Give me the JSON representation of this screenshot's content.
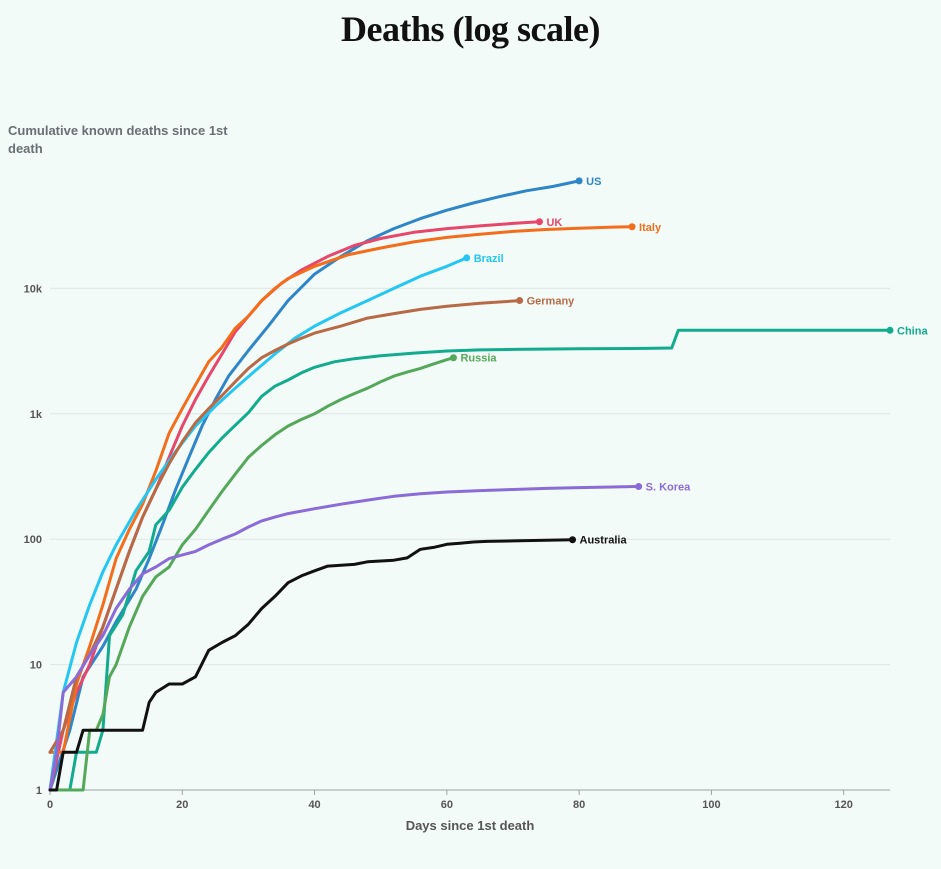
{
  "chart_data": {
    "type": "line",
    "title": "Deaths (log scale)",
    "ylabel": "Cumulative known deaths since 1st death",
    "xlabel": "Days since 1st death",
    "yscale": "log",
    "xlim": [
      0,
      127
    ],
    "ylim": [
      1,
      100000
    ],
    "x_ticks": [
      0,
      20,
      40,
      60,
      80,
      100,
      120
    ],
    "y_ticks": [
      {
        "value": 1,
        "label": "1"
      },
      {
        "value": 10,
        "label": "10"
      },
      {
        "value": 100,
        "label": "100"
      },
      {
        "value": 1000,
        "label": "1k"
      },
      {
        "value": 10000,
        "label": "10k"
      }
    ],
    "grid": "horizontal",
    "series": [
      {
        "name": "US",
        "color": "#2e86c8",
        "points": [
          [
            0,
            1
          ],
          [
            3,
            3
          ],
          [
            5,
            8
          ],
          [
            8,
            14
          ],
          [
            10,
            22
          ],
          [
            13,
            40
          ],
          [
            15,
            70
          ],
          [
            17,
            130
          ],
          [
            19,
            250
          ],
          [
            21,
            450
          ],
          [
            23,
            800
          ],
          [
            25,
            1300
          ],
          [
            27,
            2000
          ],
          [
            30,
            3200
          ],
          [
            33,
            5000
          ],
          [
            36,
            8000
          ],
          [
            40,
            13000
          ],
          [
            44,
            18000
          ],
          [
            48,
            24000
          ],
          [
            52,
            30000
          ],
          [
            56,
            36000
          ],
          [
            60,
            42000
          ],
          [
            64,
            48000
          ],
          [
            68,
            54000
          ],
          [
            72,
            60000
          ],
          [
            76,
            65000
          ],
          [
            80,
            72000
          ]
        ]
      },
      {
        "name": "UK",
        "color": "#e6476a",
        "points": [
          [
            0,
            1
          ],
          [
            2,
            3
          ],
          [
            4,
            6
          ],
          [
            6,
            10
          ],
          [
            8,
            20
          ],
          [
            10,
            40
          ],
          [
            12,
            80
          ],
          [
            14,
            150
          ],
          [
            16,
            250
          ],
          [
            18,
            450
          ],
          [
            20,
            800
          ],
          [
            22,
            1300
          ],
          [
            24,
            2000
          ],
          [
            26,
            3000
          ],
          [
            28,
            4500
          ],
          [
            30,
            6000
          ],
          [
            32,
            8000
          ],
          [
            35,
            11000
          ],
          [
            38,
            14000
          ],
          [
            42,
            18000
          ],
          [
            46,
            22000
          ],
          [
            50,
            25000
          ],
          [
            55,
            28000
          ],
          [
            60,
            30000
          ],
          [
            65,
            31500
          ],
          [
            70,
            33000
          ],
          [
            74,
            34000
          ]
        ]
      },
      {
        "name": "Italy",
        "color": "#f36d1b",
        "points": [
          [
            0,
            2
          ],
          [
            2,
            2
          ],
          [
            4,
            7
          ],
          [
            6,
            14
          ],
          [
            8,
            30
          ],
          [
            10,
            70
          ],
          [
            12,
            120
          ],
          [
            14,
            190
          ],
          [
            16,
            350
          ],
          [
            18,
            700
          ],
          [
            20,
            1100
          ],
          [
            22,
            1700
          ],
          [
            24,
            2600
          ],
          [
            26,
            3400
          ],
          [
            28,
            4800
          ],
          [
            30,
            6000
          ],
          [
            32,
            8000
          ],
          [
            34,
            10000
          ],
          [
            36,
            12000
          ],
          [
            40,
            15000
          ],
          [
            45,
            18500
          ],
          [
            50,
            21000
          ],
          [
            55,
            23500
          ],
          [
            60,
            25500
          ],
          [
            65,
            27000
          ],
          [
            70,
            28500
          ],
          [
            75,
            29500
          ],
          [
            80,
            30200
          ],
          [
            85,
            30800
          ],
          [
            88,
            31000
          ]
        ]
      },
      {
        "name": "Brazil",
        "color": "#25c6f2",
        "points": [
          [
            0,
            1
          ],
          [
            2,
            6
          ],
          [
            4,
            15
          ],
          [
            6,
            30
          ],
          [
            8,
            55
          ],
          [
            10,
            90
          ],
          [
            13,
            170
          ],
          [
            16,
            300
          ],
          [
            19,
            500
          ],
          [
            22,
            800
          ],
          [
            25,
            1150
          ],
          [
            28,
            1600
          ],
          [
            31,
            2200
          ],
          [
            34,
            3000
          ],
          [
            37,
            4000
          ],
          [
            40,
            5000
          ],
          [
            44,
            6400
          ],
          [
            48,
            8000
          ],
          [
            52,
            10000
          ],
          [
            56,
            12500
          ],
          [
            60,
            15000
          ],
          [
            63,
            17500
          ]
        ]
      },
      {
        "name": "Germany",
        "color": "#b86a47",
        "points": [
          [
            0,
            2
          ],
          [
            2,
            3
          ],
          [
            4,
            8
          ],
          [
            6,
            12
          ],
          [
            8,
            20
          ],
          [
            10,
            40
          ],
          [
            12,
            80
          ],
          [
            14,
            150
          ],
          [
            16,
            250
          ],
          [
            18,
            400
          ],
          [
            20,
            600
          ],
          [
            22,
            850
          ],
          [
            24,
            1100
          ],
          [
            26,
            1400
          ],
          [
            28,
            1800
          ],
          [
            30,
            2300
          ],
          [
            32,
            2800
          ],
          [
            34,
            3200
          ],
          [
            36,
            3600
          ],
          [
            38,
            4000
          ],
          [
            40,
            4400
          ],
          [
            44,
            5000
          ],
          [
            48,
            5800
          ],
          [
            52,
            6300
          ],
          [
            56,
            6800
          ],
          [
            60,
            7200
          ],
          [
            65,
            7600
          ],
          [
            71,
            8000
          ]
        ]
      },
      {
        "name": "China",
        "color": "#12ab8d",
        "points": [
          [
            0,
            1
          ],
          [
            3,
            1
          ],
          [
            4,
            2
          ],
          [
            7,
            2
          ],
          [
            8,
            3
          ],
          [
            9,
            17
          ],
          [
            11,
            25
          ],
          [
            13,
            56
          ],
          [
            15,
            80
          ],
          [
            16,
            130
          ],
          [
            18,
            170
          ],
          [
            20,
            260
          ],
          [
            22,
            360
          ],
          [
            24,
            490
          ],
          [
            26,
            640
          ],
          [
            28,
            810
          ],
          [
            30,
            1020
          ],
          [
            32,
            1380
          ],
          [
            34,
            1660
          ],
          [
            36,
            1860
          ],
          [
            38,
            2120
          ],
          [
            40,
            2350
          ],
          [
            43,
            2600
          ],
          [
            46,
            2750
          ],
          [
            50,
            2900
          ],
          [
            55,
            3050
          ],
          [
            60,
            3170
          ],
          [
            65,
            3230
          ],
          [
            70,
            3260
          ],
          [
            80,
            3300
          ],
          [
            90,
            3320
          ],
          [
            94,
            3350
          ],
          [
            95,
            4630
          ],
          [
            110,
            4632
          ],
          [
            127,
            4633
          ]
        ]
      },
      {
        "name": "Russia",
        "color": "#55a85a",
        "points": [
          [
            0,
            1
          ],
          [
            5,
            1
          ],
          [
            6,
            3
          ],
          [
            7,
            3
          ],
          [
            8,
            4
          ],
          [
            9,
            8
          ],
          [
            10,
            10
          ],
          [
            12,
            20
          ],
          [
            14,
            35
          ],
          [
            16,
            50
          ],
          [
            18,
            60
          ],
          [
            20,
            90
          ],
          [
            22,
            120
          ],
          [
            24,
            170
          ],
          [
            26,
            240
          ],
          [
            28,
            330
          ],
          [
            30,
            450
          ],
          [
            32,
            560
          ],
          [
            34,
            680
          ],
          [
            36,
            800
          ],
          [
            38,
            900
          ],
          [
            40,
            1000
          ],
          [
            42,
            1150
          ],
          [
            44,
            1300
          ],
          [
            46,
            1450
          ],
          [
            48,
            1600
          ],
          [
            50,
            1800
          ],
          [
            52,
            2000
          ],
          [
            54,
            2150
          ],
          [
            56,
            2300
          ],
          [
            58,
            2500
          ],
          [
            60,
            2700
          ],
          [
            61,
            2800
          ]
        ]
      },
      {
        "name": "S. Korea",
        "color": "#8b6bd8",
        "points": [
          [
            0,
            1
          ],
          [
            1,
            2
          ],
          [
            2,
            6
          ],
          [
            4,
            8
          ],
          [
            6,
            12
          ],
          [
            8,
            17
          ],
          [
            10,
            28
          ],
          [
            12,
            40
          ],
          [
            14,
            53
          ],
          [
            16,
            60
          ],
          [
            18,
            70
          ],
          [
            20,
            75
          ],
          [
            22,
            80
          ],
          [
            24,
            90
          ],
          [
            26,
            100
          ],
          [
            28,
            110
          ],
          [
            30,
            125
          ],
          [
            32,
            140
          ],
          [
            34,
            150
          ],
          [
            36,
            160
          ],
          [
            40,
            175
          ],
          [
            44,
            190
          ],
          [
            48,
            205
          ],
          [
            52,
            220
          ],
          [
            56,
            230
          ],
          [
            60,
            238
          ],
          [
            65,
            244
          ],
          [
            70,
            249
          ],
          [
            75,
            254
          ],
          [
            80,
            258
          ],
          [
            85,
            261
          ],
          [
            89,
            263
          ]
        ]
      },
      {
        "name": "Australia",
        "color": "#111111",
        "points": [
          [
            0,
            1
          ],
          [
            1,
            1
          ],
          [
            2,
            2
          ],
          [
            3,
            2
          ],
          [
            4,
            2
          ],
          [
            5,
            3
          ],
          [
            14,
            3
          ],
          [
            15,
            5
          ],
          [
            16,
            6
          ],
          [
            18,
            7
          ],
          [
            20,
            7
          ],
          [
            22,
            8
          ],
          [
            24,
            13
          ],
          [
            26,
            15
          ],
          [
            28,
            17
          ],
          [
            30,
            21
          ],
          [
            32,
            28
          ],
          [
            34,
            35
          ],
          [
            36,
            45
          ],
          [
            38,
            51
          ],
          [
            40,
            56
          ],
          [
            42,
            61
          ],
          [
            44,
            62
          ],
          [
            46,
            63
          ],
          [
            48,
            66
          ],
          [
            50,
            67
          ],
          [
            52,
            68
          ],
          [
            54,
            71
          ],
          [
            56,
            83
          ],
          [
            58,
            86
          ],
          [
            60,
            91
          ],
          [
            62,
            93
          ],
          [
            64,
            95
          ],
          [
            66,
            96
          ],
          [
            70,
            97
          ],
          [
            75,
            98
          ],
          [
            79,
            99
          ]
        ]
      }
    ]
  }
}
